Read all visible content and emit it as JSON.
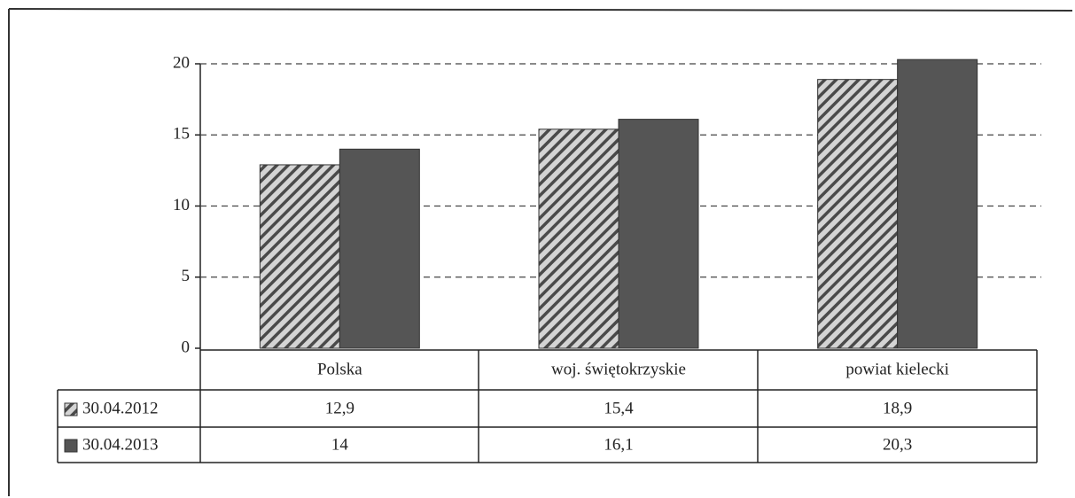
{
  "chart_data": {
    "type": "bar",
    "categories": [
      "Polska",
      "woj. świętokrzyskie",
      "powiat kielecki"
    ],
    "series": [
      {
        "name": "30.04.2012",
        "color": "#4a4a4a",
        "hatch": true,
        "values": [
          12.9,
          15.4,
          18.9
        ],
        "value_labels": [
          "12,9",
          "15,4",
          "18,9"
        ]
      },
      {
        "name": "30.04.2013",
        "color": "#555555",
        "hatch": false,
        "values": [
          14,
          16.1,
          20.3
        ],
        "value_labels": [
          "14",
          "16,1",
          "20,3"
        ]
      }
    ],
    "ylim": [
      0,
      20
    ],
    "yticks": [
      0,
      5,
      10,
      15,
      20
    ],
    "grid": true
  }
}
